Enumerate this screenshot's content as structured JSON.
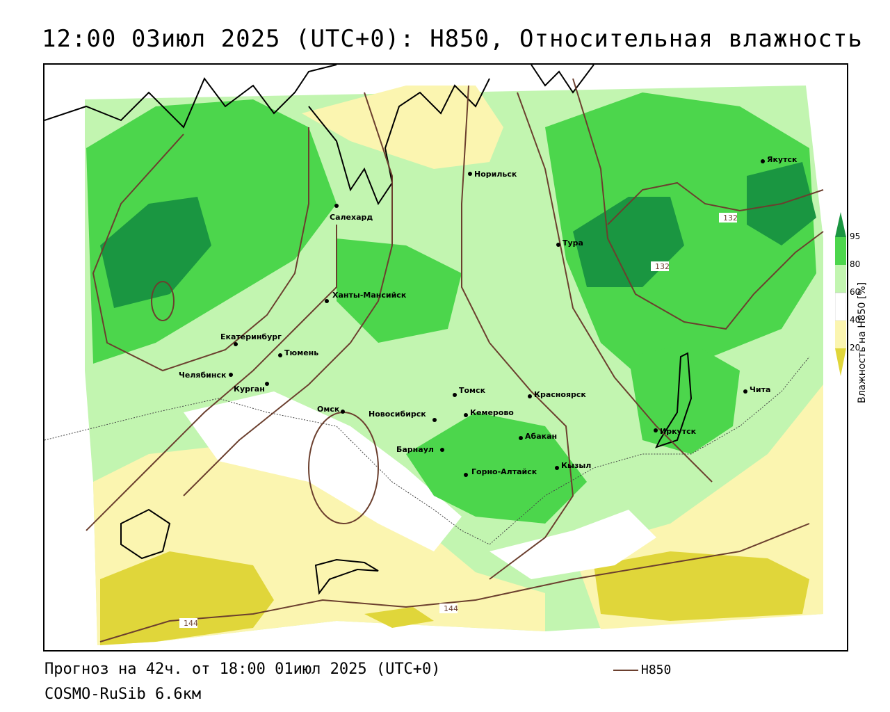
{
  "title": "12:00 03июл 2025 (UTC+0): H850, Относительная влажность",
  "footer": {
    "forecast": "Прогноз на 42ч. от 18:00 01июл 2025 (UTC+0)",
    "model": "COSMO-RuSib 6.6км"
  },
  "legend": {
    "line_label": "H850",
    "line_color": "#6b3f2e"
  },
  "colorbar": {
    "title": "Влажность на H850 [%]",
    "ticks": [
      "95",
      "80",
      "60",
      "40",
      "20"
    ],
    "colors": {
      "very_wet": "#1a9641",
      "wet": "#4cd64c",
      "moist": "#c2f5b0",
      "neutral": "#ffffff",
      "dry": "#fbf5b0",
      "very_dry": "#e0d63a"
    }
  },
  "cities": [
    {
      "name": "Якутск"
    },
    {
      "name": "Норильск"
    },
    {
      "name": "Салехард"
    },
    {
      "name": "Тура"
    },
    {
      "name": "Ханты-Мансийск"
    },
    {
      "name": "Екатеринбург"
    },
    {
      "name": "Тюмень"
    },
    {
      "name": "Челябинск"
    },
    {
      "name": "Курган"
    },
    {
      "name": "Омск"
    },
    {
      "name": "Новосибирск"
    },
    {
      "name": "Томск"
    },
    {
      "name": "Кемерово"
    },
    {
      "name": "Красноярск"
    },
    {
      "name": "Абакан"
    },
    {
      "name": "Барнаул"
    },
    {
      "name": "Горно-Алтайск"
    },
    {
      "name": "Кызыл"
    },
    {
      "name": "Иркутск"
    },
    {
      "name": "Чита"
    }
  ],
  "isolines": [
    "132",
    "132",
    "144",
    "144"
  ]
}
